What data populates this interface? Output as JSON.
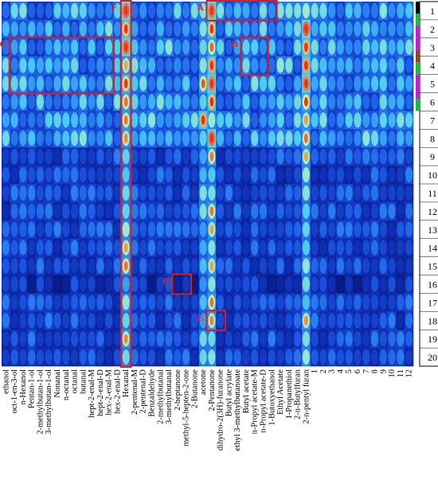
{
  "chart_data": {
    "type": "heatmap",
    "title": "",
    "xlabel": "",
    "ylabel": "",
    "color_scale": [
      "#06136e",
      "#0f2fb5",
      "#1f5ee8",
      "#2f95f5",
      "#4fd2f2",
      "#a6f2c8",
      "#f6f07a",
      "#f7a23d",
      "#e63323"
    ],
    "colors": {
      "background": "#0a2690",
      "box_red": "#e01b1b",
      "tick_text": "#000000"
    },
    "x_labels": [
      "ethanol",
      "oct-1-en-3-ol",
      "n-Hexanol",
      "Pentan-1-ol",
      "2-methylbutan-1-ol",
      "3-methylbutan-1-ol",
      "Nonanal",
      "n-octanal",
      "octanal",
      "butanal",
      "hept-2-enal-M",
      "hept-2-enal-D",
      "hex-2-enal-M",
      "hex-2-enal-D",
      "Hexanal",
      "2-pentenal-M",
      "2-pentenal-D",
      "Benzaldehyde",
      "2-methylbutanal",
      "3-methylbutanal",
      "2-heptanone",
      "methyl-5-hepten-2-one",
      "2-Butanone",
      "acetone",
      "2-Pentanone",
      "dihydro-2(3H)-furanone",
      "Butyl acrylate",
      "ethyl 3-methylbutanoate",
      "Butyl acetate",
      "n-Propyl acetate-M",
      "n-Propyl acetate-D",
      "1-Butoxyethanol",
      "Ethyl Acetate",
      "1-Propanethiol",
      "2-n-Butylfuran",
      "2-n-pentyl furan",
      "1",
      "2",
      "3",
      "4",
      "5",
      "6",
      "7",
      "8",
      "9",
      "10",
      "11",
      "12"
    ],
    "y_labels": [
      "1",
      "2",
      "3",
      "4",
      "5",
      "6",
      "7",
      "8",
      "9",
      "10",
      "11",
      "12",
      "13",
      "14",
      "15",
      "16",
      "17",
      "18",
      "19",
      "20"
    ],
    "group_colors": [
      "#000000",
      "#1fb83a",
      "#c21fd1",
      "#c21fd1",
      "#8a4a1a",
      "#1fb83a",
      "#c21fd1",
      "#c21fd1",
      "#1fb83a"
    ],
    "regions": [
      {
        "label": "A",
        "columns": [
          "2-Pentanone",
          "1-Butoxyethanol"
        ],
        "rows": [
          "1",
          "1"
        ]
      },
      {
        "label": "B",
        "columns": [
          "Butyl acetate",
          "n-Propyl acetate-D"
        ],
        "rows": [
          "3",
          "4"
        ]
      },
      {
        "label": "C",
        "columns": [
          "oct-1-en-3-ol",
          "hex-2-enal-M"
        ],
        "rows": [
          "3",
          "5"
        ]
      },
      {
        "label": "D",
        "columns": [
          "2-heptanone",
          "methyl-5-hepten-2-one"
        ],
        "rows": [
          "16",
          "16"
        ]
      },
      {
        "label": "E",
        "columns": [
          "2-Pentanone",
          "dihydro-2(3H)-furanone"
        ],
        "rows": [
          "18",
          "18"
        ]
      },
      {
        "label": "F",
        "columns": [
          "Hexanal",
          "Hexanal"
        ],
        "rows": [
          "1",
          "20"
        ]
      }
    ]
  }
}
